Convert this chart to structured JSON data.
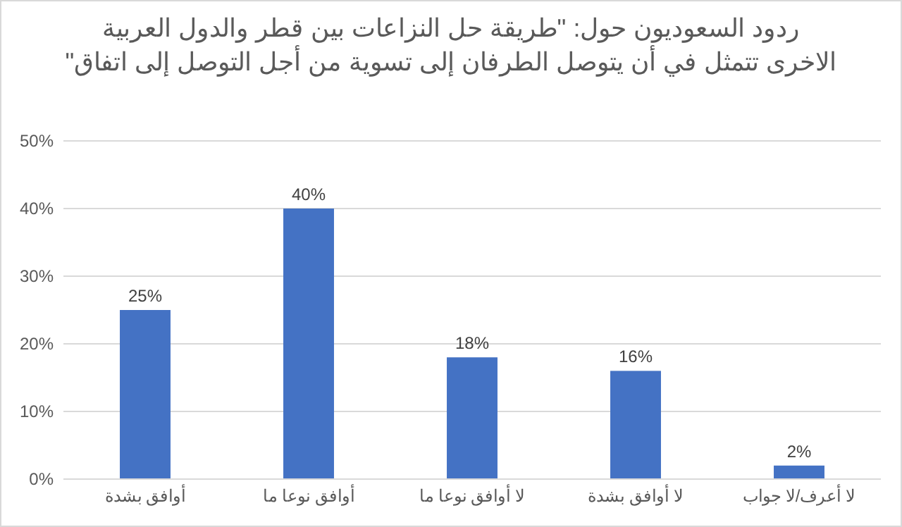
{
  "chart_data": {
    "type": "bar",
    "title": "ردود السعوديون حول: \"طريقة حل النزاعات بين قطر والدول العربية\nالاخرى تتمثل في أن يتوصل الطرفان إلى تسوية من أجل التوصل إلى اتفاق\"",
    "categories": [
      "أوافق بشدة",
      "أوافق نوعا ما",
      "لا أوافق نوعا ما",
      "لا أوافق بشدة",
      "لا أعرف/لا جواب"
    ],
    "values": [
      25,
      40,
      18,
      16,
      2
    ],
    "value_labels": [
      "25%",
      "40%",
      "18%",
      "16%",
      "2%"
    ],
    "color": "#4472c4",
    "ylim": [
      0,
      50
    ],
    "yticks": [
      {
        "value": 0,
        "label": "0%"
      },
      {
        "value": 10,
        "label": "10%"
      },
      {
        "value": 20,
        "label": "20%"
      },
      {
        "value": 30,
        "label": "30%"
      },
      {
        "value": 40,
        "label": "40%"
      },
      {
        "value": 50,
        "label": "50%"
      }
    ],
    "grid": "y"
  }
}
